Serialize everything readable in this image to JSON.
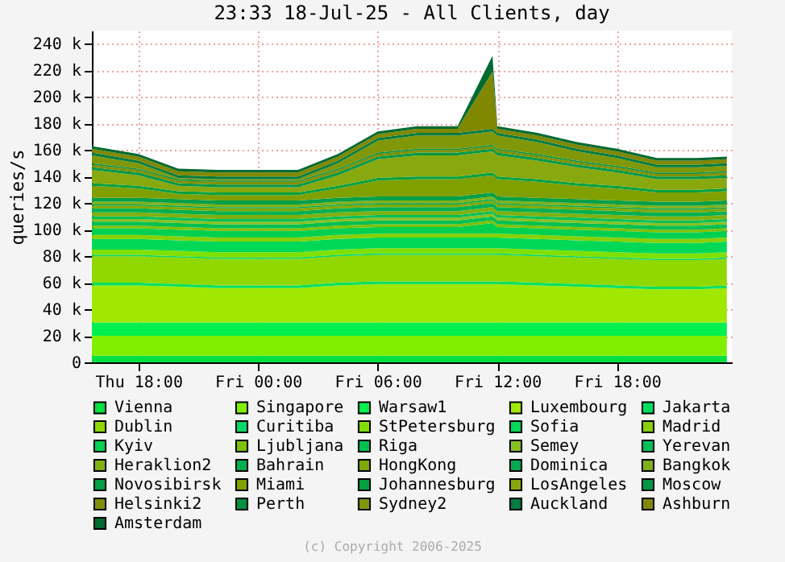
{
  "chart_data": {
    "type": "area",
    "stacked": true,
    "title": "23:33 18-Jul-25 - All Clients, day",
    "ylabel": "queries/s",
    "annotations": [
      "(c) Copyright 2006-2025"
    ],
    "x": [
      "2025-07-17T15:40",
      "2025-07-17T18:00",
      "2025-07-17T20:00",
      "2025-07-17T22:00",
      "2025-07-18T00:00",
      "2025-07-18T02:00",
      "2025-07-18T04:00",
      "2025-07-18T06:00",
      "2025-07-18T08:00",
      "2025-07-18T10:00",
      "2025-07-18T11:45",
      "2025-07-18T12:00",
      "2025-07-18T14:00",
      "2025-07-18T16:00",
      "2025-07-18T18:00",
      "2025-07-18T20:00",
      "2025-07-18T22:00",
      "2025-07-18T23:30"
    ],
    "xlim": [
      "2025-07-17T15:40",
      "2025-07-18T23:45"
    ],
    "xticks": [
      {
        "value": "2025-07-17T18:00",
        "label": "Thu 18:00"
      },
      {
        "value": "2025-07-18T00:00",
        "label": "Fri 00:00"
      },
      {
        "value": "2025-07-18T06:00",
        "label": "Fri 06:00"
      },
      {
        "value": "2025-07-18T12:00",
        "label": "Fri 12:00"
      },
      {
        "value": "2025-07-18T18:00",
        "label": "Fri 18:00"
      }
    ],
    "ylim": [
      0,
      250
    ],
    "yticks": [
      {
        "value": 0,
        "label": "0"
      },
      {
        "value": 20,
        "label": "20 k"
      },
      {
        "value": 40,
        "label": "40 k"
      },
      {
        "value": 60,
        "label": "60 k"
      },
      {
        "value": 80,
        "label": "80 k"
      },
      {
        "value": 100,
        "label": "100 k"
      },
      {
        "value": 120,
        "label": "120 k"
      },
      {
        "value": 140,
        "label": "140 k"
      },
      {
        "value": 160,
        "label": "160 k"
      },
      {
        "value": 180,
        "label": "180 k"
      },
      {
        "value": 200,
        "label": "200 k"
      },
      {
        "value": 220,
        "label": "220 k"
      },
      {
        "value": 240,
        "label": "240 k"
      }
    ],
    "grid": true,
    "legend": "bottom",
    "series": [
      {
        "name": "Vienna",
        "color": "#00e040",
        "values": [
          5,
          5,
          5,
          5,
          5,
          5,
          5,
          5,
          5,
          5,
          5,
          5,
          5,
          5,
          5,
          5,
          5,
          5
        ]
      },
      {
        "name": "Singapore",
        "color": "#80f000",
        "values": [
          15,
          15,
          15,
          15,
          15,
          15,
          15,
          15,
          15,
          15,
          15,
          15,
          15,
          15,
          15,
          15,
          15,
          15
        ]
      },
      {
        "name": "Warsaw1",
        "color": "#00f050",
        "values": [
          10,
          10,
          10,
          10,
          10,
          10,
          10,
          10,
          10,
          10,
          10,
          10,
          10,
          10,
          10,
          10,
          10,
          10
        ]
      },
      {
        "name": "Luxembourg",
        "color": "#a0e800",
        "values": [
          28,
          28,
          27,
          26,
          26,
          26,
          28,
          29,
          29,
          29,
          29,
          29,
          28,
          27,
          26,
          25,
          25,
          26
        ]
      },
      {
        "name": "Jakarta",
        "color": "#00e060",
        "values": [
          2,
          2,
          2,
          2,
          2,
          2,
          2,
          2,
          2,
          2,
          2,
          2,
          2,
          2,
          2,
          2,
          2,
          2
        ]
      },
      {
        "name": "Dublin",
        "color": "#90d800",
        "values": [
          20,
          20,
          20,
          20,
          20,
          20,
          20,
          20,
          20,
          20,
          20,
          20,
          20,
          20,
          20,
          20,
          20,
          20
        ]
      },
      {
        "name": "Curitiba",
        "color": "#00d868",
        "values": [
          1,
          1,
          1,
          1,
          1,
          1,
          1,
          1,
          1,
          1,
          1,
          1,
          1,
          1,
          1,
          1,
          1,
          1
        ]
      },
      {
        "name": "StPetersburg",
        "color": "#80e000",
        "values": [
          4,
          4,
          4,
          4,
          4,
          4,
          4,
          4,
          4,
          4,
          4,
          4,
          4,
          4,
          4,
          4,
          4,
          4
        ]
      },
      {
        "name": "Sofia",
        "color": "#00d858",
        "values": [
          8,
          8,
          8,
          8,
          8,
          8,
          8,
          8,
          8,
          8,
          8,
          8,
          8,
          8,
          8,
          8,
          8,
          8
        ]
      },
      {
        "name": "Madrid",
        "color": "#88d000",
        "values": [
          3,
          3,
          3,
          3,
          3,
          3,
          3,
          3,
          3,
          3,
          3,
          3,
          3,
          3,
          3,
          3,
          3,
          3
        ]
      },
      {
        "name": "Kyiv",
        "color": "#00d050",
        "values": [
          5,
          5,
          5,
          5,
          5,
          5,
          5,
          5,
          5,
          5,
          8,
          5,
          5,
          5,
          5,
          5,
          5,
          5
        ]
      },
      {
        "name": "Ljubljana",
        "color": "#80c000",
        "values": [
          2,
          2,
          2,
          2,
          2,
          2,
          2,
          2,
          2,
          2,
          2,
          2,
          2,
          2,
          2,
          2,
          2,
          2
        ]
      },
      {
        "name": "Riga",
        "color": "#00c050",
        "values": [
          3,
          3,
          3,
          3,
          3,
          3,
          3,
          3,
          3,
          3,
          3,
          3,
          3,
          3,
          3,
          3,
          3,
          3
        ]
      },
      {
        "name": "Semey",
        "color": "#88c020",
        "values": [
          2,
          2,
          2,
          2,
          2,
          2,
          2,
          2,
          2,
          2,
          2,
          2,
          2,
          2,
          2,
          2,
          2,
          2
        ]
      },
      {
        "name": "Yerevan",
        "color": "#00c058",
        "values": [
          2,
          2,
          2,
          2,
          2,
          2,
          2,
          2,
          2,
          2,
          2,
          2,
          2,
          2,
          2,
          2,
          2,
          2
        ]
      },
      {
        "name": "Heraklion2",
        "color": "#80b010",
        "values": [
          3,
          3,
          3,
          3,
          3,
          3,
          3,
          3,
          3,
          3,
          3,
          3,
          3,
          3,
          3,
          3,
          3,
          3
        ]
      },
      {
        "name": "Bahrain",
        "color": "#00b050",
        "values": [
          3,
          3,
          3,
          3,
          3,
          3,
          3,
          3,
          3,
          3,
          3,
          3,
          3,
          3,
          3,
          3,
          3,
          3
        ]
      },
      {
        "name": "HongKong",
        "color": "#80a800",
        "values": [
          2,
          2,
          2,
          2,
          2,
          2,
          2,
          2,
          2,
          2,
          2,
          2,
          2,
          2,
          2,
          2,
          2,
          2
        ]
      },
      {
        "name": "Dominica",
        "color": "#00a850",
        "values": [
          1,
          1,
          1,
          1,
          1,
          1,
          1,
          1,
          1,
          1,
          1,
          1,
          1,
          1,
          1,
          1,
          1,
          1
        ]
      },
      {
        "name": "Bangkok",
        "color": "#80b018",
        "values": [
          2,
          2,
          2,
          2,
          2,
          2,
          2,
          2,
          2,
          2,
          2,
          2,
          2,
          2,
          2,
          2,
          2,
          2
        ]
      },
      {
        "name": "Novosibirsk",
        "color": "#00a048",
        "values": [
          3,
          3,
          3,
          3,
          3,
          3,
          3,
          3,
          3,
          3,
          3,
          3,
          3,
          3,
          3,
          3,
          3,
          3
        ]
      },
      {
        "name": "Miami",
        "color": "#80a000",
        "values": [
          9,
          7,
          4,
          4,
          4,
          4,
          7,
          12,
          13,
          13,
          13,
          13,
          12,
          10,
          9,
          7,
          7,
          7
        ]
      },
      {
        "name": "Johannesburg",
        "color": "#00a040",
        "values": [
          2,
          2,
          2,
          2,
          2,
          2,
          2,
          2,
          2,
          2,
          2,
          2,
          2,
          2,
          2,
          2,
          2,
          2
        ]
      },
      {
        "name": "LosAngeles",
        "color": "#88a810",
        "values": [
          10,
          8,
          4,
          4,
          4,
          4,
          8,
          14,
          16,
          16,
          16,
          16,
          14,
          12,
          10,
          8,
          8,
          8
        ]
      },
      {
        "name": "Moscow",
        "color": "#009848",
        "values": [
          2,
          2,
          2,
          2,
          2,
          2,
          2,
          2,
          2,
          2,
          2,
          2,
          2,
          2,
          2,
          2,
          2,
          2
        ]
      },
      {
        "name": "Helsinki2",
        "color": "#809000",
        "values": [
          2,
          2,
          2,
          2,
          2,
          2,
          2,
          2,
          2,
          2,
          2,
          2,
          2,
          2,
          2,
          2,
          2,
          2
        ]
      },
      {
        "name": "Perth",
        "color": "#009040",
        "values": [
          1,
          1,
          1,
          1,
          1,
          1,
          1,
          1,
          1,
          1,
          1,
          1,
          1,
          1,
          1,
          1,
          1,
          1
        ]
      },
      {
        "name": "Sydney2",
        "color": "#809808",
        "values": [
          6,
          4,
          1,
          1,
          1,
          1,
          4,
          9,
          10,
          10,
          10,
          10,
          9,
          7,
          6,
          4,
          4,
          4
        ]
      },
      {
        "name": "Auckland",
        "color": "#007c40",
        "values": [
          2,
          2,
          2,
          2,
          2,
          2,
          2,
          2,
          2,
          2,
          2,
          2,
          2,
          2,
          2,
          2,
          2,
          2
        ]
      },
      {
        "name": "Ashburn",
        "color": "#808800",
        "values": [
          3,
          3,
          3,
          3,
          3,
          3,
          3,
          3,
          3,
          3,
          43,
          3,
          3,
          3,
          3,
          3,
          3,
          3
        ]
      },
      {
        "name": "Amsterdam",
        "color": "#006a30",
        "values": [
          2,
          2,
          2,
          2,
          2,
          2,
          2,
          2,
          2,
          2,
          12,
          2,
          2,
          2,
          2,
          2,
          2,
          2
        ]
      }
    ]
  }
}
